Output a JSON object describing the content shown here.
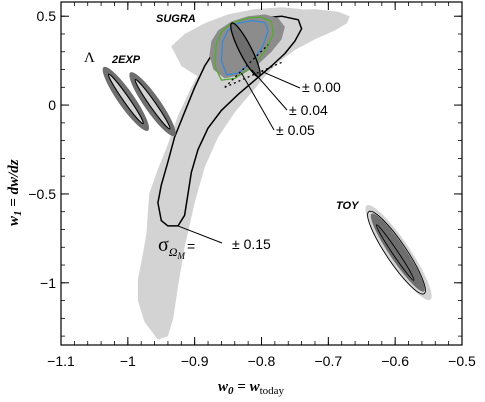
{
  "chart_data": {
    "type": "contour",
    "xlabel": "w0 = wtoday",
    "xlabel_parts": {
      "main": "w",
      "sub": "0",
      "eq": " = ",
      "main2": "w",
      "sub2": "today"
    },
    "ylabel": "w1 = dw/dz",
    "ylabel_parts": {
      "main": "w",
      "sub": "1",
      "eq": " = ",
      "rest": "dw/dz"
    },
    "xlim": [
      -1.1,
      -0.5
    ],
    "ylim": [
      -1.35,
      0.58
    ],
    "xticks": [
      -1.1,
      -1,
      -0.9,
      -0.8,
      -0.7,
      -0.6,
      -0.5
    ],
    "xtick_labels": [
      "−1.1",
      "−1",
      "−0.9",
      "−0.8",
      "−0.7",
      "−0.6",
      "−0.5"
    ],
    "yticks": [
      -1,
      -0.5,
      0,
      0.5
    ],
    "ytick_labels": [
      "−1",
      "−0.5",
      "0",
      "0.5"
    ],
    "models": [
      {
        "name": "Λ",
        "center": [
          -1.0,
          0.0
        ]
      },
      {
        "name": "2EXP",
        "center": [
          -0.96,
          -0.02
        ]
      },
      {
        "name": "SUGRA",
        "center": [
          -0.82,
          0.31
        ]
      },
      {
        "name": "TOY",
        "center": [
          -0.6,
          -0.8
        ]
      }
    ],
    "annotations": [
      "± 0.00",
      "± 0.04",
      "± 0.05",
      "± 0.15"
    ],
    "sigma_label": {
      "symbol": "σ",
      "sub": "Ω",
      "subsub": "M",
      "eq": "="
    },
    "colors": {
      "outer_contour": "#d3d3d3",
      "inner_contour": "#6e6e6e",
      "sugra_mid": "#8c8c8c",
      "green_line": "#55aa33",
      "blue_line": "#3388dd",
      "outline": "#000000"
    }
  }
}
